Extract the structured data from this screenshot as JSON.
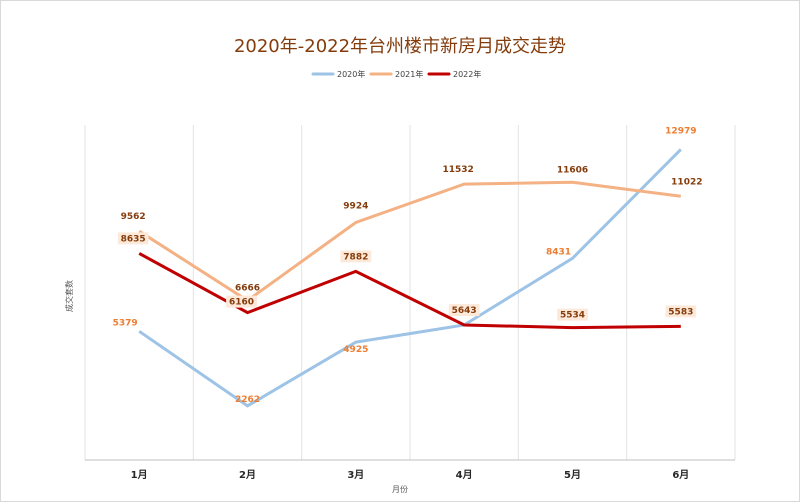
{
  "chart_data": {
    "type": "line",
    "title": "2020年-2022年台州楼市新房月成交走势",
    "xlabel": "月份",
    "ylabel": "成交套数",
    "categories": [
      "1月",
      "2月",
      "3月",
      "4月",
      "5月",
      "6月"
    ],
    "ylim": [
      0,
      14000
    ],
    "grid": {
      "vertical": true,
      "horizontal": false
    },
    "legend_position": "top-center",
    "series": [
      {
        "name": "2020年",
        "values": [
          5379,
          2262,
          4925,
          5643,
          8431,
          12979
        ],
        "color": "#9DC3E6",
        "label_color": "#ED7D31"
      },
      {
        "name": "2021年",
        "values": [
          9562,
          6666,
          9924,
          11532,
          11606,
          11022
        ],
        "color": "#F4B183",
        "label_color": "#843C0C"
      },
      {
        "name": "2022年",
        "values": [
          8635,
          6160,
          7882,
          5643,
          5534,
          5583
        ],
        "color": "#C00000",
        "label_color": "#843C0C",
        "label_bg": "#FDE9D9"
      }
    ]
  }
}
